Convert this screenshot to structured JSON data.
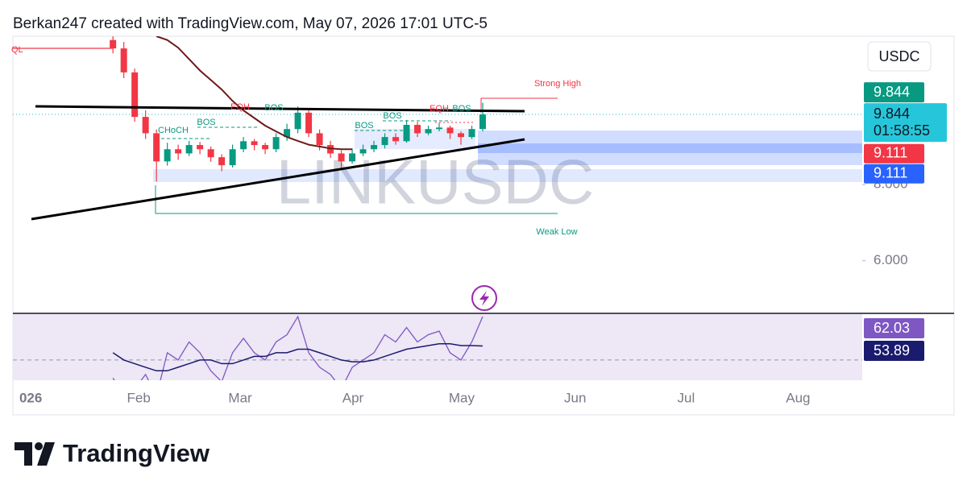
{
  "header": "Berkan247 created with TradingView.com, May 07, 2026 17:01 UTC-5",
  "brand": "TradingView",
  "chart_data": {
    "type": "candlestick",
    "symbol": "LINKUSDC",
    "currency": "USDC",
    "categories": [
      null,
      null,
      null,
      null,
      null,
      null,
      null,
      null,
      null,
      null,
      null,
      null,
      null,
      null,
      null,
      null,
      null,
      null,
      null,
      null,
      null,
      null,
      null,
      null,
      null,
      null,
      null,
      null,
      null,
      null,
      null,
      null,
      null,
      null,
      null
    ],
    "open": [
      11.8,
      11.58,
      10.95,
      9.78,
      9.35,
      8.61,
      8.93,
      8.82,
      9.04,
      8.93,
      8.72,
      8.51,
      8.93,
      9.14,
      9.04,
      8.93,
      9.25,
      9.46,
      9.89,
      9.35,
      9.04,
      8.82,
      8.61,
      8.82,
      8.93,
      9.04,
      9.25,
      9.14,
      9.57,
      9.35,
      9.46,
      9.5,
      9.35,
      9.25,
      9.46
    ],
    "high": [
      11.95,
      11.75,
      11.05,
      9.95,
      9.45,
      9.1,
      9.05,
      9.15,
      9.12,
      9.0,
      8.8,
      9.05,
      9.25,
      9.2,
      9.1,
      9.35,
      9.6,
      10.05,
      9.95,
      9.45,
      9.15,
      8.9,
      8.95,
      9.05,
      9.15,
      9.35,
      9.35,
      9.7,
      9.65,
      9.55,
      9.62,
      9.55,
      9.4,
      9.55,
      10.15
    ],
    "low": [
      11.45,
      10.8,
      9.65,
      9.2,
      8.08,
      8.5,
      8.65,
      8.75,
      8.8,
      8.6,
      8.35,
      8.45,
      8.85,
      8.9,
      8.8,
      8.85,
      9.15,
      9.35,
      9.25,
      8.9,
      8.7,
      8.45,
      8.55,
      8.75,
      8.85,
      8.95,
      9.05,
      9.1,
      9.25,
      9.3,
      9.4,
      9.2,
      9.05,
      9.2,
      9.4
    ],
    "close": [
      11.58,
      10.95,
      9.78,
      9.35,
      8.61,
      8.93,
      8.82,
      9.04,
      8.93,
      8.72,
      8.51,
      8.93,
      9.14,
      9.04,
      8.93,
      9.25,
      9.46,
      9.89,
      9.35,
      9.04,
      8.82,
      8.61,
      8.82,
      8.93,
      9.04,
      9.25,
      9.14,
      9.57,
      9.35,
      9.46,
      9.5,
      9.35,
      9.25,
      9.46,
      9.844
    ],
    "up_color": "#089981",
    "down_color": "#f23645",
    "ma": {
      "color": "#6d1a1a",
      "values": [
        null,
        null,
        null,
        null,
        11.9,
        11.8,
        11.6,
        11.3,
        11.0,
        10.75,
        10.5,
        10.2,
        9.95,
        9.75,
        9.55,
        9.4,
        9.25,
        9.15,
        9.05,
        9.0,
        8.95,
        8.93,
        8.93,
        null,
        null,
        null,
        null,
        null,
        null,
        null,
        null,
        null,
        null,
        null,
        null
      ]
    },
    "ylim": [
      4.7,
      11.9
    ],
    "yticks": [
      {
        "value": 6,
        "label": "6.000"
      },
      {
        "value": 8,
        "label": "8.000"
      }
    ],
    "xlim": [
      -9.2,
      68.9
    ],
    "xticks": [
      {
        "value": -7.56,
        "label": "026"
      },
      {
        "value": 2.37,
        "label": "Feb"
      },
      {
        "value": 11.7,
        "label": "Mar"
      },
      {
        "value": 22.07,
        "label": "Apr"
      },
      {
        "value": 32.07,
        "label": "May"
      },
      {
        "value": 42.5,
        "label": "Jun"
      },
      {
        "value": 52.7,
        "label": "Jul"
      },
      {
        "value": 63.0,
        "label": "Aug"
      }
    ],
    "last_price": 9.844,
    "countdown": "01:58:55",
    "levels": [
      9.111,
      9.111
    ],
    "annotations": [
      "QL",
      "CHoCH",
      "BOS",
      "EQH",
      "BOS",
      "BOS",
      "BOS",
      "EQH",
      "BOS",
      "Strong High",
      "Weak Low"
    ],
    "rsi": {
      "color": "#7e57c2",
      "ma_color": "#1a1a6e",
      "values": [
        45,
        40,
        42,
        46,
        40,
        52,
        50,
        55,
        52,
        47,
        44,
        52,
        56,
        52,
        50,
        55,
        57,
        62,
        52,
        48,
        46,
        42,
        48,
        50,
        52,
        57,
        55,
        59,
        55,
        57,
        58,
        52,
        50,
        55,
        62.03
      ],
      "ma": [
        52,
        50,
        49,
        48,
        47,
        47,
        48,
        49,
        50,
        50,
        49,
        49,
        50,
        51,
        51,
        52,
        52,
        53,
        53,
        52,
        51,
        50,
        49.5,
        49.5,
        50,
        51,
        52,
        53,
        53.5,
        54,
        54.5,
        54.5,
        54,
        54,
        53.89
      ],
      "ylim": [
        44.4,
        62.7
      ],
      "level": 50
    }
  }
}
